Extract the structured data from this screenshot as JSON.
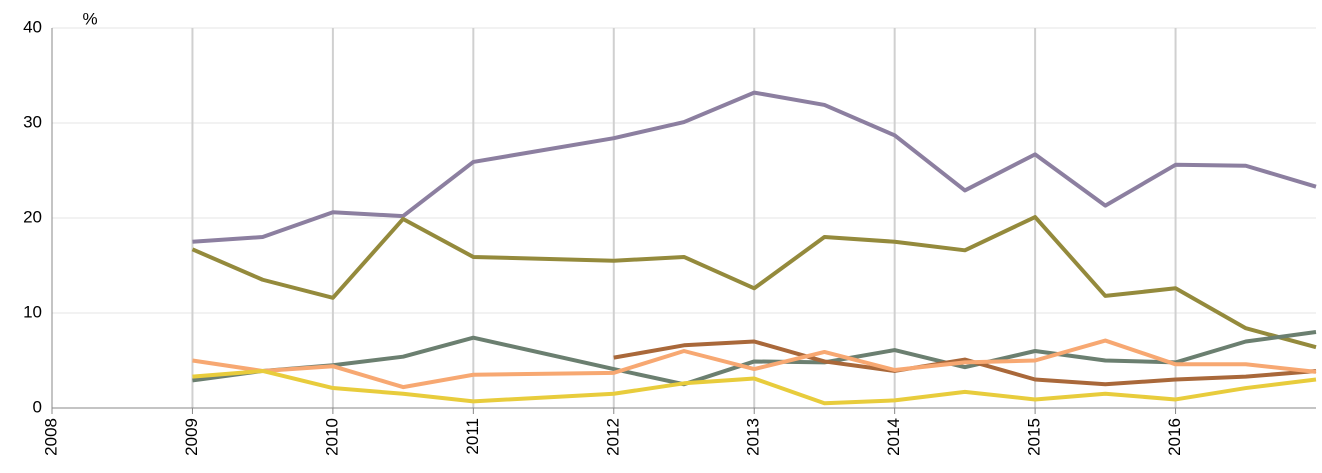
{
  "chart_data": {
    "type": "line",
    "y_label": "%",
    "x": [
      2009,
      2009.5,
      2010,
      2010.5,
      2011,
      2012,
      2012.5,
      2013,
      2013.5,
      2014,
      2014.5,
      2015,
      2015.5,
      2016,
      2016.5,
      2017
    ],
    "xlim": [
      2008,
      2017
    ],
    "xticks": [
      2008,
      2009,
      2010,
      2011,
      2012,
      2013,
      2014,
      2015,
      2016
    ],
    "ylim": [
      0,
      40
    ],
    "yticks": [
      0,
      10,
      20,
      30,
      40
    ],
    "grid": true,
    "series": [
      {
        "color": "#8c7fa0",
        "values": [
          17.5,
          18.0,
          20.6,
          20.2,
          25.9,
          28.4,
          30.1,
          33.2,
          31.9,
          28.7,
          22.9,
          26.7,
          21.3,
          25.6,
          25.5,
          23.3
        ]
      },
      {
        "color": "#948a3c",
        "values": [
          16.7,
          13.5,
          11.6,
          19.9,
          15.9,
          15.5,
          15.9,
          12.6,
          18.0,
          17.5,
          16.6,
          20.1,
          11.8,
          12.6,
          8.4,
          6.4
        ]
      },
      {
        "color": "#6b7f70",
        "values": [
          2.9,
          3.9,
          4.5,
          5.4,
          7.4,
          4.1,
          2.5,
          4.9,
          4.8,
          6.1,
          4.3,
          6.0,
          5.0,
          4.8,
          7.0,
          8.0
        ]
      },
      {
        "color": "#a9683a",
        "values": [
          null,
          null,
          null,
          null,
          null,
          5.3,
          6.6,
          7.0,
          4.9,
          3.9,
          5.1,
          3.0,
          2.5,
          3.0,
          3.3,
          3.9
        ]
      },
      {
        "color": "#f7a872",
        "values": [
          5.0,
          3.9,
          4.4,
          2.2,
          3.5,
          3.7,
          6.0,
          4.1,
          5.9,
          4.0,
          4.8,
          5.0,
          7.1,
          4.6,
          4.6,
          3.8
        ]
      },
      {
        "color": "#e8cc3c",
        "values": [
          3.3,
          3.9,
          2.1,
          1.5,
          0.7,
          1.5,
          2.6,
          3.1,
          0.5,
          0.8,
          1.7,
          0.9,
          1.5,
          0.9,
          2.1,
          3.0
        ]
      }
    ]
  }
}
